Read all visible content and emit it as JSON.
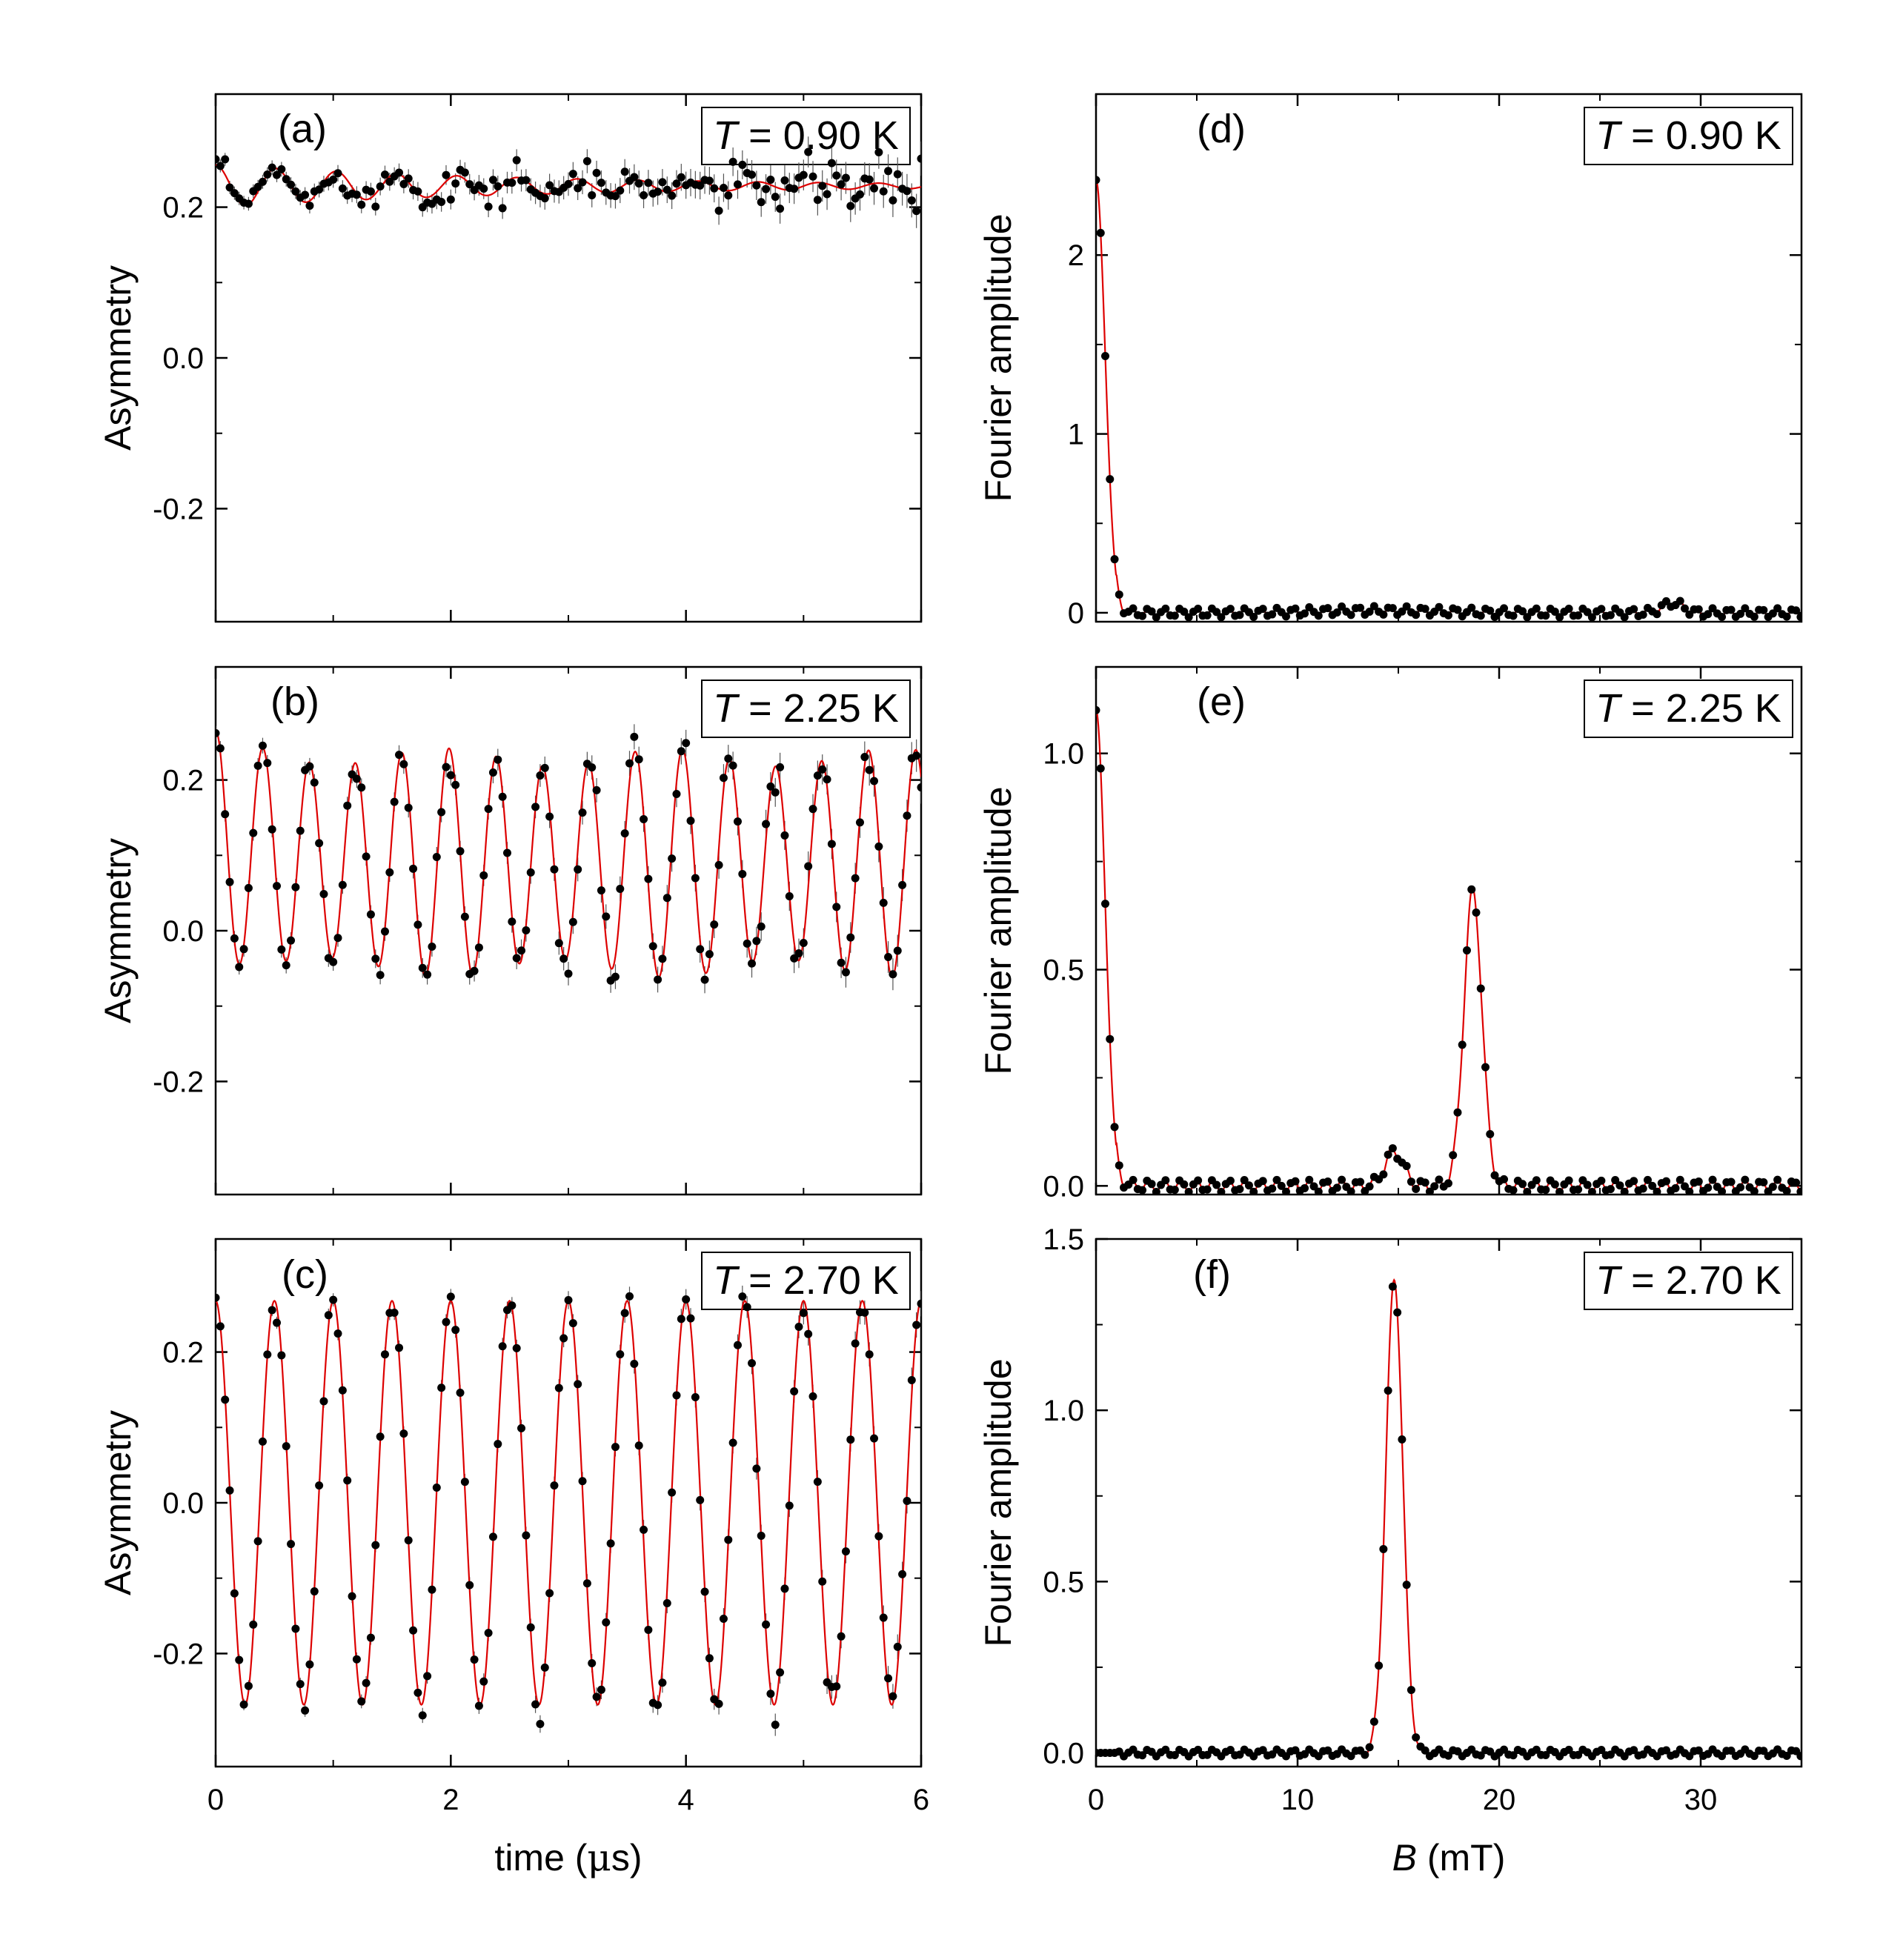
{
  "figure": {
    "background": "#ffffff",
    "marker_color": "#000000",
    "fit_color": "#dd0000"
  },
  "chart_data": [
    {
      "type": "scatter",
      "panel_label": "(a)",
      "temp_symbol": "T",
      "temp_value": " = 0.90 K",
      "xlabel_text": "time (",
      "xlabel_mu": "μ",
      "xlabel_unit": "s)",
      "ylabel": "Asymmetry",
      "xlim": [
        0,
        6
      ],
      "ylim": [
        -0.35,
        0.35
      ],
      "xticks": [
        0,
        2,
        4,
        6
      ],
      "xminor": [
        1,
        3,
        5
      ],
      "yticks": [
        -0.2,
        0.0,
        0.2
      ],
      "ytick_labels": [
        "-0.2",
        "0.0",
        "0.2"
      ],
      "show_xlabels": false,
      "model": {
        "kind": "oscillation",
        "offset": 0.228,
        "amplitude": 0.028,
        "frequency_mhz": 1.95,
        "decay": 0.35,
        "decay_amp": 0.0,
        "decay_rate": 0,
        "noise": 0.007,
        "noise_growth": 0.012,
        "step_us": 0.04
      }
    },
    {
      "type": "scatter",
      "panel_label": "(b)",
      "temp_symbol": "T",
      "temp_value": " = 2.25 K",
      "xlabel_text": "time (",
      "xlabel_mu": "μ",
      "xlabel_unit": "s)",
      "ylabel": "Asymmetry",
      "xlim": [
        0,
        6
      ],
      "ylim": [
        -0.35,
        0.35
      ],
      "xticks": [
        0,
        2,
        4,
        6
      ],
      "xminor": [
        1,
        3,
        5
      ],
      "yticks": [
        -0.2,
        0.0,
        0.2
      ],
      "ytick_labels": [
        "-0.2",
        "0.0",
        "0.2"
      ],
      "show_xlabels": false,
      "model": {
        "kind": "oscillation",
        "offset": 0.09,
        "amplitude": 0.14,
        "frequency_mhz": 2.52,
        "decay": 0.0,
        "decay_amp": 0.025,
        "decay_rate": 2.5,
        "beat_amp": 0.012,
        "beat_freq": 2.0,
        "noise": 0.008,
        "noise_growth": 0.01,
        "step_us": 0.04
      }
    },
    {
      "type": "scatter",
      "panel_label": "(c)",
      "temp_symbol": "T",
      "temp_value": " = 2.70 K",
      "xlabel_text": "time (",
      "xlabel_mu": "μ",
      "xlabel_unit": "s)",
      "ylabel": "Asymmetry",
      "xlim": [
        0,
        6
      ],
      "ylim": [
        -0.35,
        0.35
      ],
      "xticks": [
        0,
        2,
        4,
        6
      ],
      "xminor": [
        1,
        3,
        5
      ],
      "yticks": [
        -0.2,
        0.0,
        0.2
      ],
      "ytick_labels": [
        "-0.2",
        "0.0",
        "0.2"
      ],
      "xtick_labels": [
        "0",
        "2",
        "4",
        "6"
      ],
      "show_xlabels": true,
      "model": {
        "kind": "oscillation",
        "offset": 0.0,
        "amplitude": 0.268,
        "frequency_mhz": 2.0,
        "decay": 0.0,
        "decay_amp": 0.0,
        "decay_rate": 0,
        "noise": 0.006,
        "noise_growth": 0.008,
        "step_us": 0.04
      }
    },
    {
      "type": "scatter",
      "panel_label": "(d)",
      "temp_symbol": "T",
      "temp_value": " = 0.90 K",
      "xlabel_italic": "B",
      "xlabel_unit": " (mT)",
      "ylabel": "Fourier amplitude",
      "xlim": [
        0,
        35
      ],
      "ylim": [
        -0.05,
        2.9
      ],
      "xticks": [
        0,
        10,
        20,
        30
      ],
      "xminor": [
        5,
        15,
        25
      ],
      "yticks": [
        0,
        1,
        2
      ],
      "ytick_labels": [
        "0",
        "1",
        "2"
      ],
      "show_xlabels": false,
      "model": {
        "kind": "spectrum",
        "zero_amp": 2.42,
        "zero_width": 0.45,
        "wiggle": 0.025,
        "peaks": [
          {
            "center": 28.6,
            "amp": 0.055,
            "width": 0.5
          },
          {
            "center": 14.0,
            "amp": 0.012,
            "width": 3.0
          }
        ],
        "step_mT": 0.23
      }
    },
    {
      "type": "scatter",
      "panel_label": "(e)",
      "temp_symbol": "T",
      "temp_value": " = 2.25 K",
      "xlabel_italic": "B",
      "xlabel_unit": " (mT)",
      "ylabel": "Fourier amplitude",
      "xlim": [
        0,
        35
      ],
      "ylim": [
        -0.02,
        1.2
      ],
      "xticks": [
        0,
        10,
        20,
        30
      ],
      "xminor": [
        5,
        15,
        25
      ],
      "yticks": [
        0.0,
        0.5,
        1.0
      ],
      "ytick_labels": [
        "0.0",
        "0.5",
        "1.0"
      ],
      "show_xlabels": false,
      "model": {
        "kind": "spectrum",
        "zero_amp": 1.1,
        "zero_width": 0.45,
        "wiggle": 0.014,
        "peaks": [
          {
            "center": 18.7,
            "amp": 0.68,
            "width": 0.45
          },
          {
            "center": 14.8,
            "amp": 0.08,
            "width": 0.45
          }
        ],
        "step_mT": 0.23
      }
    },
    {
      "type": "scatter",
      "panel_label": "(f)",
      "temp_symbol": "T",
      "temp_value": " = 2.70 K",
      "xlabel_italic": "B",
      "xlabel_unit": " (mT)",
      "ylabel": "Fourier amplitude",
      "xlim": [
        0,
        35
      ],
      "ylim": [
        -0.04,
        1.5
      ],
      "xticks": [
        0,
        10,
        20,
        30
      ],
      "xminor": [
        5,
        15,
        25
      ],
      "yticks": [
        0.0,
        0.5,
        1.0,
        1.5
      ],
      "ytick_labels": [
        "0.0",
        "0.5",
        "1.0",
        "1.5"
      ],
      "xtick_labels": [
        "0",
        "10",
        "20",
        "30"
      ],
      "show_xlabels": true,
      "model": {
        "kind": "spectrum",
        "zero_amp": 0.0,
        "zero_width": 0.45,
        "wiggle": 0.01,
        "peaks": [
          {
            "center": 14.8,
            "amp": 1.38,
            "width": 0.42
          }
        ],
        "step_mT": 0.23
      }
    }
  ]
}
